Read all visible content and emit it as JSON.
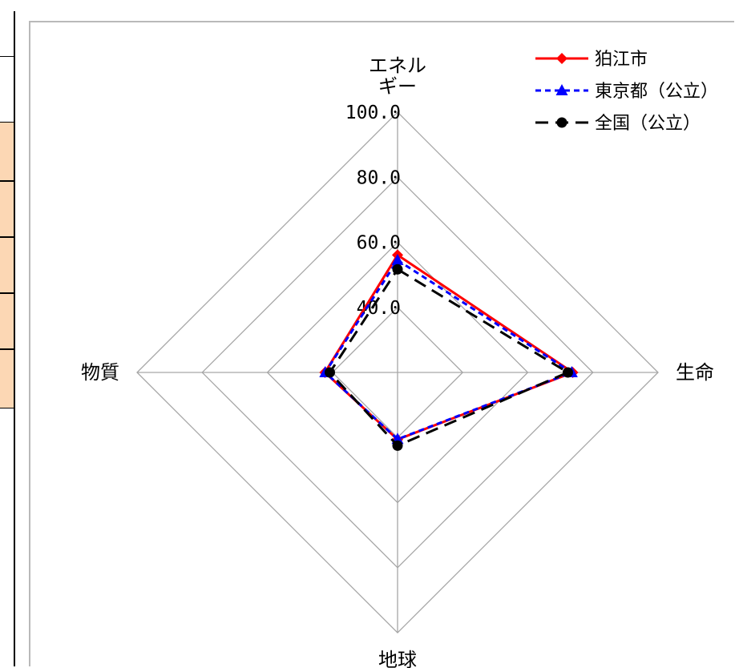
{
  "chart_data": {
    "type": "radar",
    "axes": [
      "エネルギー",
      "生命",
      "地球",
      "物質"
    ],
    "axis_label_lines": {
      "エネルギー": [
        "エネル",
        "ギー"
      ],
      "生命": [
        "生命"
      ],
      "地球": [
        "地球"
      ],
      "物質": [
        "物質"
      ]
    },
    "ticks": [
      "40.0",
      "60.0",
      "80.0",
      "100.0"
    ],
    "tick_values": [
      40,
      60,
      80,
      100
    ],
    "range": [
      20,
      100
    ],
    "grid": true,
    "legend_position": "top-right",
    "series": [
      {
        "name": "狛江市",
        "values": [
          56.1,
          73.8,
          40.6,
          42.3
        ],
        "color": "#ff0000",
        "dash": "solid",
        "marker": "diamond"
      },
      {
        "name": "東京都（公立）",
        "values": [
          54.5,
          73.5,
          40.5,
          42.2
        ],
        "color": "#0000ff",
        "dash": "short-dash",
        "marker": "triangle"
      },
      {
        "name": "全国（公立）",
        "values": [
          51.7,
          72.3,
          42.5,
          40.8
        ],
        "color": "#000000",
        "dash": "long-dash",
        "marker": "circle"
      }
    ]
  }
}
